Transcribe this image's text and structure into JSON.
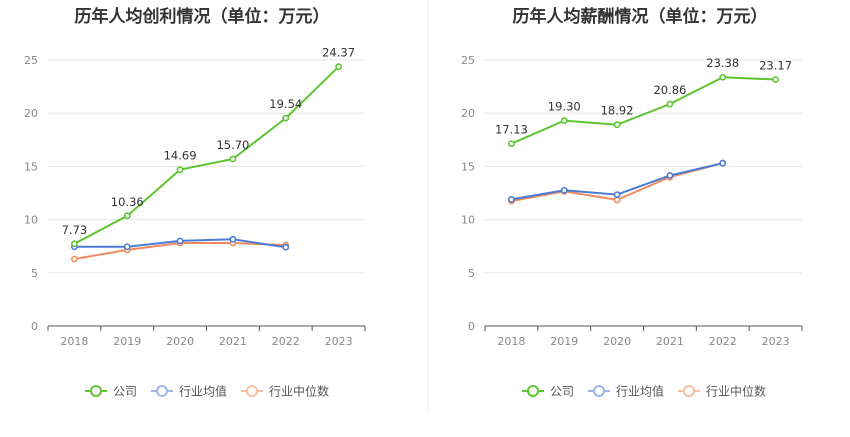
{
  "chart_data": [
    {
      "type": "line",
      "title": "历年人均创利情况（单位：万元）",
      "categories": [
        "2018",
        "2019",
        "2020",
        "2021",
        "2022",
        "2023"
      ],
      "ylim": [
        0,
        25
      ],
      "yticks": [
        0,
        5,
        10,
        15,
        20,
        25
      ],
      "grid": true,
      "legend_position": "bottom",
      "series": [
        {
          "name": "公司",
          "color": "#5CC52F",
          "values": [
            7.73,
            10.36,
            14.69,
            15.7,
            19.54,
            24.37
          ],
          "labels": [
            "7.73",
            "10.36",
            "14.69",
            "15.70",
            "19.54",
            "24.37"
          ]
        },
        {
          "name": "行业均值",
          "color": "#4A7BD6",
          "values": [
            7.45,
            7.45,
            8.0,
            8.15,
            7.4,
            null
          ]
        },
        {
          "name": "行业中位数",
          "color": "#EE8A5E",
          "values": [
            6.3,
            7.15,
            7.8,
            7.8,
            7.6,
            null
          ]
        }
      ]
    },
    {
      "type": "line",
      "title": "历年人均薪酬情况（单位：万元）",
      "categories": [
        "2018",
        "2019",
        "2020",
        "2021",
        "2022",
        "2023"
      ],
      "ylim": [
        0,
        25
      ],
      "yticks": [
        0,
        5,
        10,
        15,
        20,
        25
      ],
      "grid": true,
      "legend_position": "bottom",
      "series": [
        {
          "name": "公司",
          "color": "#5CC52F",
          "values": [
            17.13,
            19.3,
            18.92,
            20.86,
            23.38,
            23.17
          ],
          "labels": [
            "17.13",
            "19.30",
            "18.92",
            "20.86",
            "23.38",
            "23.17"
          ]
        },
        {
          "name": "行业均值",
          "color": "#4A7BD6",
          "values": [
            11.9,
            12.75,
            12.35,
            14.15,
            15.3,
            null
          ]
        },
        {
          "name": "行业中位数",
          "color": "#EE8A5E",
          "values": [
            11.75,
            12.65,
            11.85,
            14.0,
            15.3,
            null
          ]
        }
      ]
    }
  ]
}
